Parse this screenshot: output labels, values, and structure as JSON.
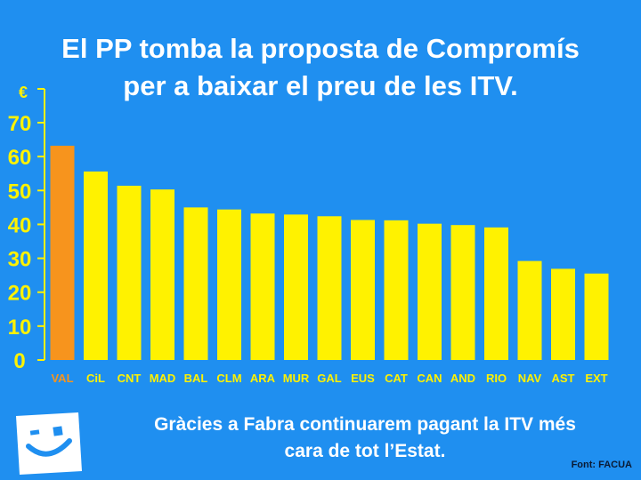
{
  "header": {
    "title_line1": "El PP tomba la proposta de Compromís",
    "title_line2": "per a baixar el preu de les ITV."
  },
  "footer": {
    "caption_line1": "Gràcies a Fabra continuarem pagant la ITV més",
    "caption_line2": "cara de tot l’Estat.",
    "source": "Font: FACUA"
  },
  "colors": {
    "background": "#1f8ff0",
    "bar": "#fff200",
    "highlight_bar": "#f7941d",
    "axis_text": "#fff200",
    "highlight_text": "#f7941d"
  },
  "logo": {
    "icon": "smiley-square-icon"
  },
  "chart_data": {
    "type": "bar",
    "ylabel": "€",
    "ylim": [
      0,
      70
    ],
    "yticks": [
      0,
      10,
      20,
      30,
      40,
      50,
      60,
      70
    ],
    "categories": [
      "VAL",
      "CiL",
      "CNT",
      "MAD",
      "BAL",
      "CLM",
      "ARA",
      "MUR",
      "GAL",
      "EUS",
      "CAT",
      "CAN",
      "AND",
      "RIO",
      "NAV",
      "AST",
      "EXT"
    ],
    "values": [
      63.2,
      55.6,
      51.4,
      50.3,
      45.0,
      44.4,
      43.2,
      42.9,
      42.4,
      41.3,
      41.2,
      40.2,
      39.8,
      39.1,
      29.2,
      26.9,
      25.5
    ],
    "highlight": "VAL",
    "grid": false
  }
}
